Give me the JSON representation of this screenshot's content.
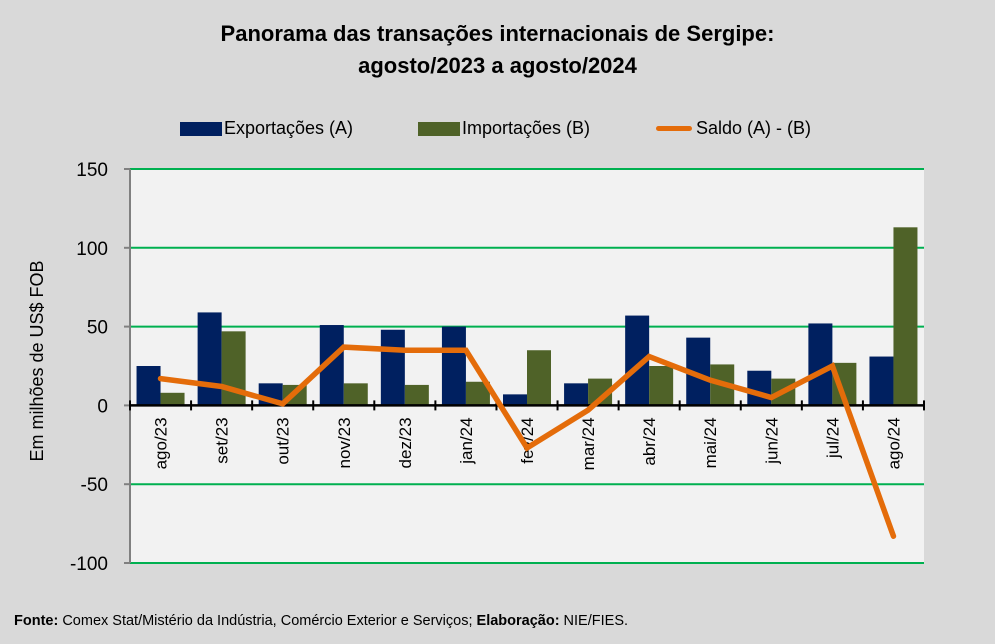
{
  "title_line1": "Panorama  das transações internacionais de Sergipe:",
  "title_line2": "agosto/2023 a agosto/2024",
  "footer": {
    "source_label": "Fonte:",
    "source_text": " Comex Stat/Mistério da Indústria, Comércio Exterior e Serviços; ",
    "elab_label": "Elaboração:",
    "elab_text": " NIE/FIES."
  },
  "colors": {
    "exports": "#002060",
    "imports": "#4f6228",
    "balance": "#e46c0a",
    "grid": "#00b050",
    "plot_bg": "#f2f2f2",
    "page_bg": "#d9d9d9"
  },
  "chart_data": {
    "type": "bar",
    "title": "Panorama das transações internacionais de Sergipe: agosto/2023 a agosto/2024",
    "xlabel": "",
    "ylabel": "Em milhões de US$ FOB",
    "ylim": [
      -100,
      150
    ],
    "yticks": [
      150,
      100,
      50,
      0,
      -50,
      -100
    ],
    "grid": true,
    "legend_position": "top",
    "categories": [
      "ago/23",
      "set/23",
      "out/23",
      "nov/23",
      "dez/23",
      "jan/24",
      "fev/24",
      "mar/24",
      "abr/24",
      "mai/24",
      "jun/24",
      "jul/24",
      "ago/24"
    ],
    "series": [
      {
        "name": "Exportações (A)",
        "type": "bar",
        "values": [
          25,
          59,
          14,
          51,
          48,
          50,
          7,
          14,
          57,
          43,
          22,
          52,
          31
        ]
      },
      {
        "name": "Importações (B)",
        "type": "bar",
        "values": [
          8,
          47,
          13,
          14,
          13,
          15,
          35,
          17,
          25,
          26,
          17,
          27,
          113
        ]
      },
      {
        "name": "Saldo (A) - (B)",
        "type": "line",
        "values": [
          17,
          12,
          1,
          37,
          35,
          35,
          -27,
          -3,
          31,
          16,
          5,
          25,
          -83
        ]
      }
    ]
  }
}
